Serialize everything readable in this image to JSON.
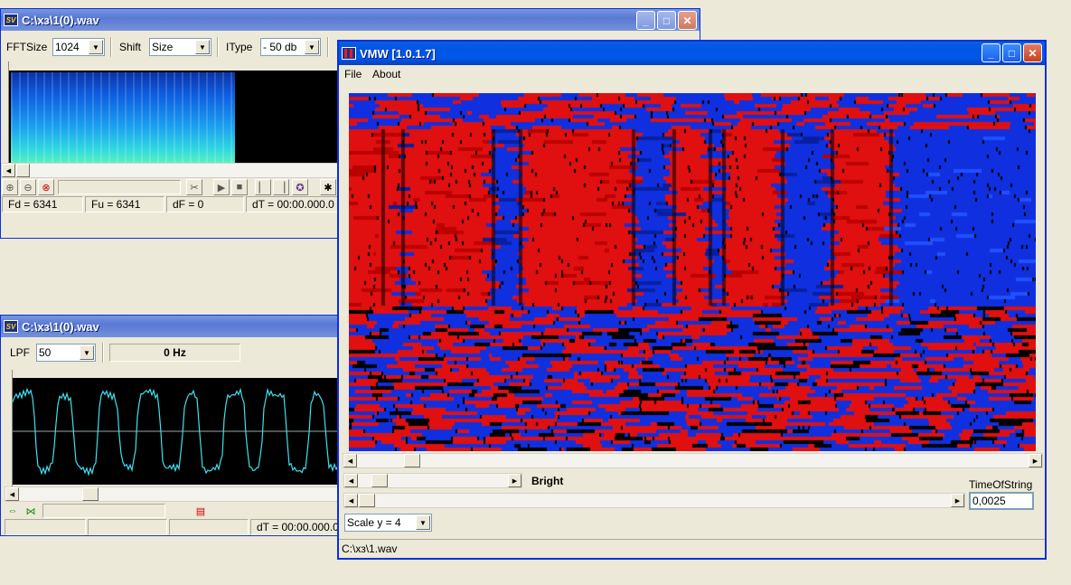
{
  "colors": {
    "spectrogram_red": "#e01010",
    "spectrogram_blue": "#1030e0",
    "waveform": "#40e0f0",
    "xp_title": "#0055e5"
  },
  "window1": {
    "title": "C:\\хз\\1(0).wav",
    "fftsize_label": "FFTSize",
    "fftsize_value": "1024",
    "shift_label": "Shift",
    "shift_value": "Size",
    "itype_label": "IType",
    "itype_value": "- 50 db",
    "status": {
      "fd": "Fd = 6341",
      "fu": "Fu = 6341",
      "df": "dF = 0",
      "dt": "dT = 00:00.000.0"
    }
  },
  "window2": {
    "title": "C:\\хз\\1(0).wav",
    "lpf_label": "LPF",
    "lpf_value": "50",
    "freq_display": "0 Hz",
    "status": {
      "dt": "dT = 00:00.000.0"
    }
  },
  "vmw": {
    "title": "VMW [1.0.1.7]",
    "menu": {
      "file": "File",
      "about": "About"
    },
    "bright_label": "Bright",
    "time_of_string_label": "TimeOfString",
    "time_of_string_value": "0,0025",
    "scale_value": "Scale y = 4",
    "status_path": "C:\\хз\\1.wav"
  }
}
